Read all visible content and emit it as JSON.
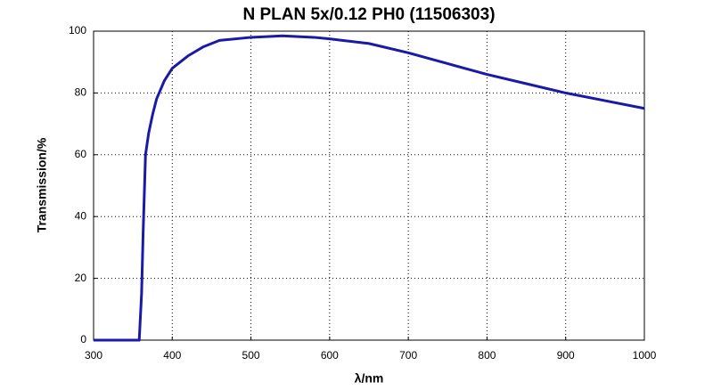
{
  "chart_data": {
    "type": "line",
    "title": "N PLAN 5x/0.12 PH0 (11506303)",
    "x_label": "λ/nm",
    "y_label": "Transmission/%",
    "x": [
      300,
      358,
      361,
      363,
      366,
      370,
      375,
      380,
      390,
      400,
      420,
      440,
      460,
      500,
      540,
      580,
      600,
      650,
      700,
      750,
      800,
      850,
      900,
      950,
      1000
    ],
    "series": [
      {
        "name": "Transmission",
        "color": "#1a1aa6",
        "values": [
          0,
          0,
          15,
          35,
          60,
          67,
          73,
          78,
          84,
          88,
          92,
          95,
          97,
          98,
          98.5,
          98,
          97.5,
          96,
          93,
          89.5,
          86,
          83,
          80,
          77.5,
          75
        ]
      }
    ],
    "xlim": [
      300,
      1000
    ],
    "ylim": [
      0,
      100
    ],
    "xticks": [
      300,
      400,
      500,
      600,
      700,
      800,
      900,
      1000
    ],
    "yticks": [
      0,
      20,
      40,
      60,
      80,
      100
    ],
    "grid": true
  }
}
